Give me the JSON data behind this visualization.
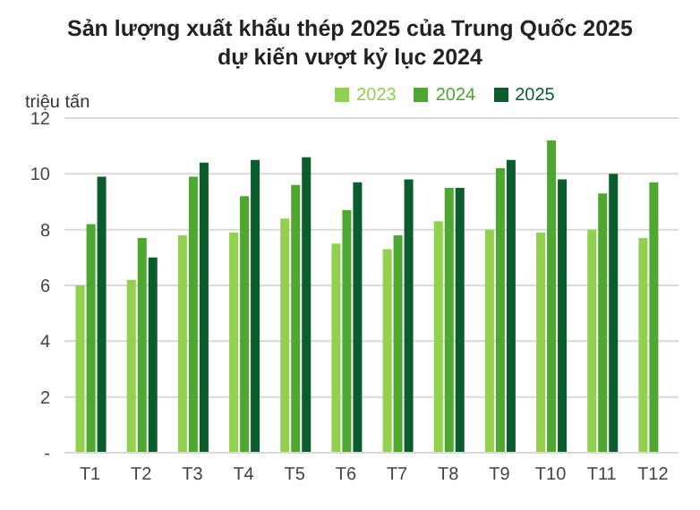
{
  "chart_data": {
    "type": "bar",
    "title": "Sản lượng xuất khẩu thép 2025 của Trung Quốc 2025 dự kiến vượt kỷ lục 2024",
    "ylabel": "triệu tấn",
    "categories": [
      "T1",
      "T2",
      "T3",
      "T4",
      "T5",
      "T6",
      "T7",
      "T8",
      "T9",
      "T10",
      "T11",
      "T12"
    ],
    "series": [
      {
        "name": "2023",
        "color": "#92d050",
        "values": [
          6.0,
          6.2,
          7.8,
          7.9,
          8.4,
          7.5,
          7.3,
          8.3,
          8.0,
          7.9,
          8.0,
          7.7
        ]
      },
      {
        "name": "2024",
        "color": "#4ea72e",
        "values": [
          8.2,
          7.7,
          9.9,
          9.2,
          9.6,
          8.7,
          7.8,
          9.5,
          10.2,
          11.2,
          9.3,
          9.7
        ]
      },
      {
        "name": "2025",
        "color": "#0b5d2e",
        "values": [
          9.9,
          7.0,
          10.4,
          10.5,
          10.6,
          9.7,
          9.8,
          9.5,
          10.5,
          9.8,
          10.0,
          null
        ]
      }
    ],
    "ylim": [
      0,
      12
    ],
    "yticks": [
      {
        "value": 0,
        "label": "-"
      },
      2,
      4,
      6,
      8,
      10,
      12
    ],
    "grid": "y",
    "legend": "top"
  }
}
